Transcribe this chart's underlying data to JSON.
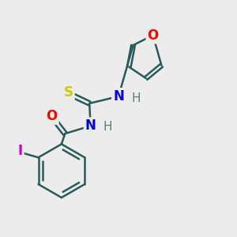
{
  "background_color": "#ececec",
  "bond_color": "#2a5a5a",
  "atom_colors": {
    "O": "#ff0000",
    "N": "#0000ee",
    "S": "#cccc00",
    "I": "#cc00cc",
    "H": "#5a8080"
  },
  "figsize": [
    3.0,
    3.0
  ],
  "dpi": 100
}
